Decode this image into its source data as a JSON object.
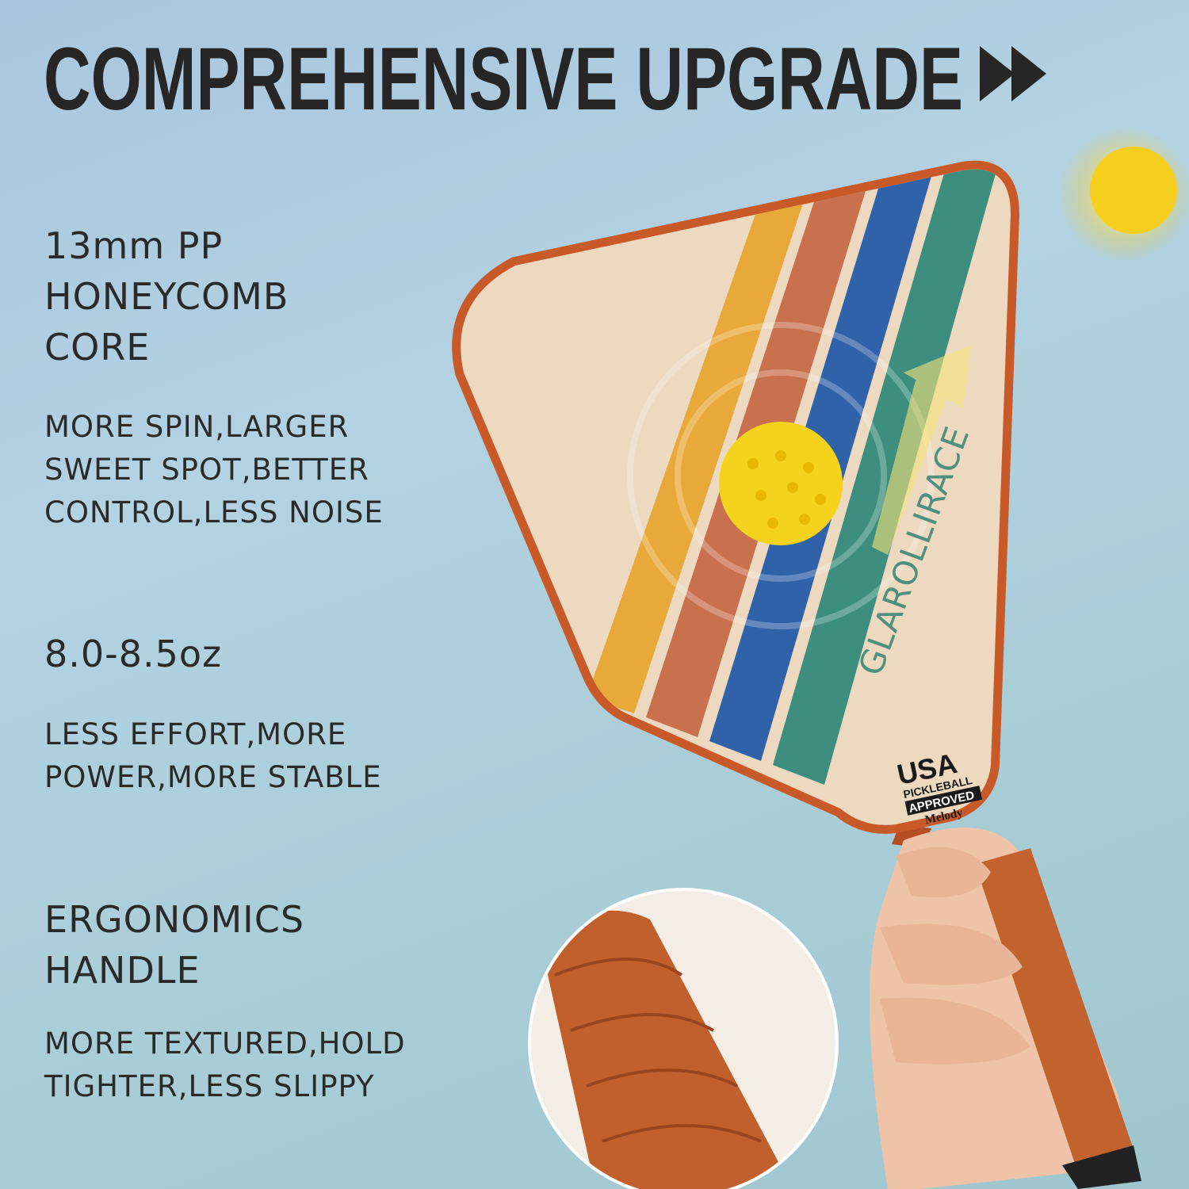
{
  "headline": "COMPREHENSIVE UPGRADE",
  "headline_icon": "double-chevron-right-icon",
  "features": [
    {
      "title_lines": [
        "13mm PP",
        "HONEYCOMB",
        "CORE"
      ],
      "desc_lines": [
        "MORE SPIN,LARGER",
        "SWEET SPOT,BETTER",
        "CONTROL,LESS NOISE"
      ]
    },
    {
      "title_lines": [
        "8.0-8.5oz"
      ],
      "desc_lines": [
        "LESS EFFORT,MORE",
        "POWER,MORE STABLE"
      ]
    },
    {
      "title_lines": [
        "ERGONOMICS",
        "HANDLE"
      ],
      "desc_lines": [
        "MORE TEXTURED,HOLD",
        "TIGHTER,LESS SLIPPY"
      ]
    }
  ],
  "paddle": {
    "brand": "GLAROLLIRACE",
    "badge": {
      "line1": "USA",
      "line2": "PICKLEBALL",
      "line3": "APPROVED",
      "line4": "Melody"
    },
    "colors": {
      "edge": "#c85a2a",
      "face": "#ecd9bf",
      "stripe_orange": "#e9a83a",
      "stripe_rust": "#c9704e",
      "stripe_blue": "#2f62a8",
      "stripe_green": "#3d8e7e",
      "ball": "#f5d21c"
    }
  }
}
